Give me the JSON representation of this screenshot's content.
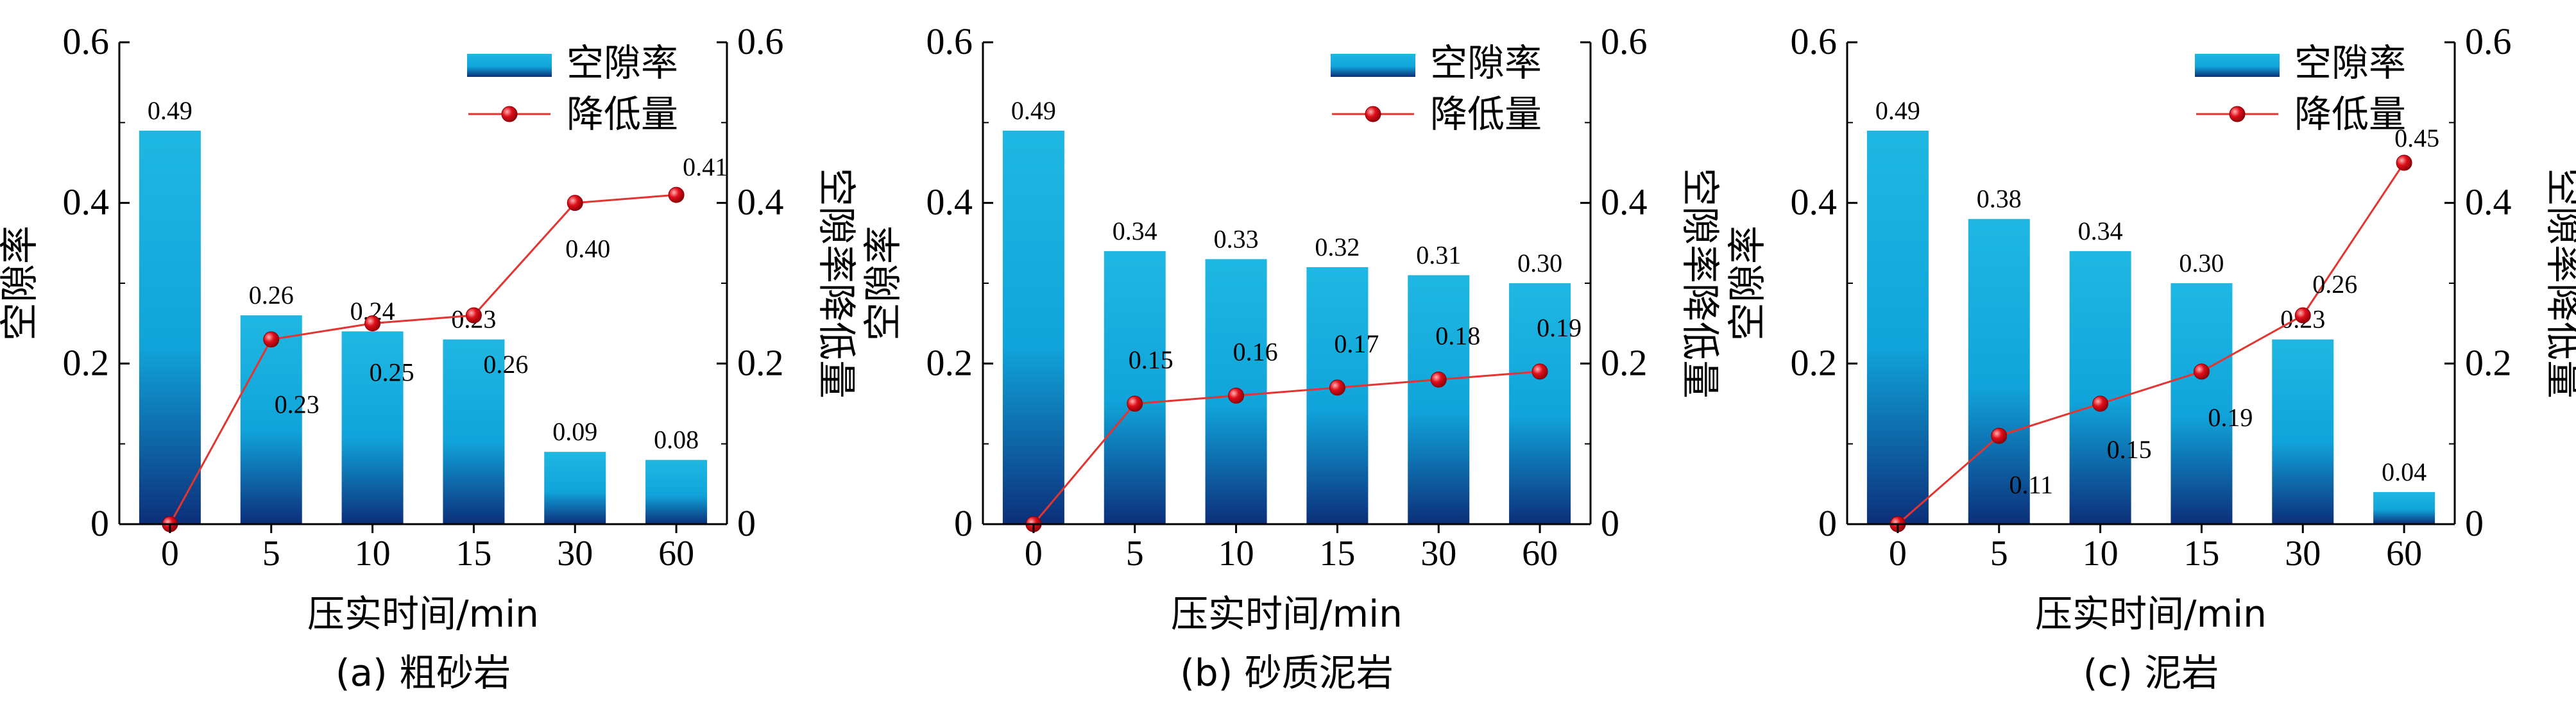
{
  "chart_data": [
    {
      "type": "bar+line",
      "caption": "(a) 粗砂岩",
      "xlabel": "压实时间/min",
      "ylabel": "空隙率",
      "y2label": "空隙率降低量",
      "ylim": [
        0,
        0.6
      ],
      "y2lim": [
        0,
        0.6
      ],
      "yticks": [
        "0",
        "0.2",
        "0.4",
        "0.6"
      ],
      "y2ticks": [
        "0",
        "0.2",
        "0.4",
        "0.6"
      ],
      "categories": [
        "0",
        "5",
        "10",
        "15",
        "30",
        "60"
      ],
      "legend_position": "top-right",
      "series": [
        {
          "name": "空隙率",
          "kind": "bar",
          "axis": "left",
          "values": [
            0.49,
            0.26,
            0.24,
            0.23,
            0.09,
            0.08
          ],
          "labels": [
            "0.49",
            "0.26",
            "0.24",
            "0.23",
            "0.09",
            "0.08"
          ]
        },
        {
          "name": "降低量",
          "kind": "line",
          "axis": "right",
          "values": [
            0,
            0.23,
            0.25,
            0.26,
            0.4,
            0.41
          ],
          "labels": [
            "",
            "0.23",
            "0.25",
            "0.26",
            "0.40",
            "0.41"
          ]
        }
      ]
    },
    {
      "type": "bar+line",
      "caption": "(b) 砂质泥岩",
      "xlabel": "压实时间/min",
      "ylabel": "空隙率",
      "y2label": "空隙率降低量",
      "ylim": [
        0,
        0.6
      ],
      "y2lim": [
        0,
        0.6
      ],
      "yticks": [
        "0",
        "0.2",
        "0.4",
        "0.6"
      ],
      "y2ticks": [
        "0",
        "0.2",
        "0.4",
        "0.6"
      ],
      "categories": [
        "0",
        "5",
        "10",
        "15",
        "30",
        "60"
      ],
      "legend_position": "top-right",
      "series": [
        {
          "name": "空隙率",
          "kind": "bar",
          "axis": "left",
          "values": [
            0.49,
            0.34,
            0.33,
            0.32,
            0.31,
            0.3
          ],
          "labels": [
            "0.49",
            "0.34",
            "0.33",
            "0.32",
            "0.31",
            "0.30"
          ]
        },
        {
          "name": "降低量",
          "kind": "line",
          "axis": "right",
          "values": [
            0,
            0.15,
            0.16,
            0.17,
            0.18,
            0.19
          ],
          "labels": [
            "",
            "0.15",
            "0.16",
            "0.17",
            "0.18",
            "0.19"
          ]
        }
      ]
    },
    {
      "type": "bar+line",
      "caption": "(c) 泥岩",
      "xlabel": "压实时间/min",
      "ylabel": "空隙率",
      "y2label": "空隙率降低量",
      "ylim": [
        0,
        0.6
      ],
      "y2lim": [
        0,
        0.6
      ],
      "yticks": [
        "0",
        "0.2",
        "0.4",
        "0.6"
      ],
      "y2ticks": [
        "0",
        "0.2",
        "0.4",
        "0.6"
      ],
      "categories": [
        "0",
        "5",
        "10",
        "15",
        "30",
        "60"
      ],
      "legend_position": "top-right",
      "series": [
        {
          "name": "空隙率",
          "kind": "bar",
          "axis": "left",
          "values": [
            0.49,
            0.38,
            0.34,
            0.3,
            0.23,
            0.04
          ],
          "labels": [
            "0.49",
            "0.38",
            "0.34",
            "0.30",
            "0.23",
            "0.04"
          ]
        },
        {
          "name": "降低量",
          "kind": "line",
          "axis": "right",
          "values": [
            0,
            0.11,
            0.15,
            0.19,
            0.26,
            0.45
          ],
          "labels": [
            "",
            "0.11",
            "0.15",
            "0.19",
            "0.26",
            "0.45"
          ]
        }
      ]
    }
  ],
  "colors": {
    "bar_top": "#1fb7e2",
    "bar_mid": "#10a4da",
    "bar_bottom": "#0c2f7a",
    "line": "#e3342f",
    "marker": "#e00f1a",
    "axis": "#000000"
  }
}
